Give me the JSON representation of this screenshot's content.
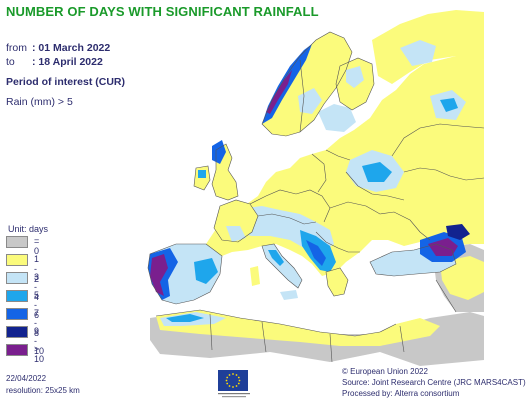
{
  "title": "NUMBER OF DAYS WITH SIGNIFICANT RAINFALL",
  "period": {
    "from_label": "from",
    "from_value": ": 01 March 2022",
    "to_label": "to",
    "to_value": ": 18 April 2022",
    "interest": "Period of interest (CUR)",
    "threshold": "Rain (mm) > 5"
  },
  "legend": {
    "title": "Unit: days",
    "items": [
      {
        "label": "= 0",
        "color": "#c8c8c8"
      },
      {
        "label": "1 - 2",
        "color": "#fbfb7c"
      },
      {
        "label": "3 - 4",
        "color": "#c4e4f6"
      },
      {
        "label": "5 - 6",
        "color": "#1ea6ec"
      },
      {
        "label": "7 - 8",
        "color": "#1464e6"
      },
      {
        "label": "9 - 10",
        "color": "#12238f"
      },
      {
        "label": "> 10",
        "color": "#7a1f8e"
      }
    ]
  },
  "footer": {
    "date": "22/04/2022",
    "resolution": "resolution: 25x25 km",
    "copyright": "© European Union 2022",
    "source": "Source: Joint Research Centre (JRC MARS4CAST)",
    "processed": "Processed by: Alterra consortium"
  },
  "colors": {
    "sea": "#ffffff",
    "outside": "#c8c8c8",
    "border": "#555555"
  },
  "icons": {
    "eu_logo": "eu-flag-icon"
  }
}
